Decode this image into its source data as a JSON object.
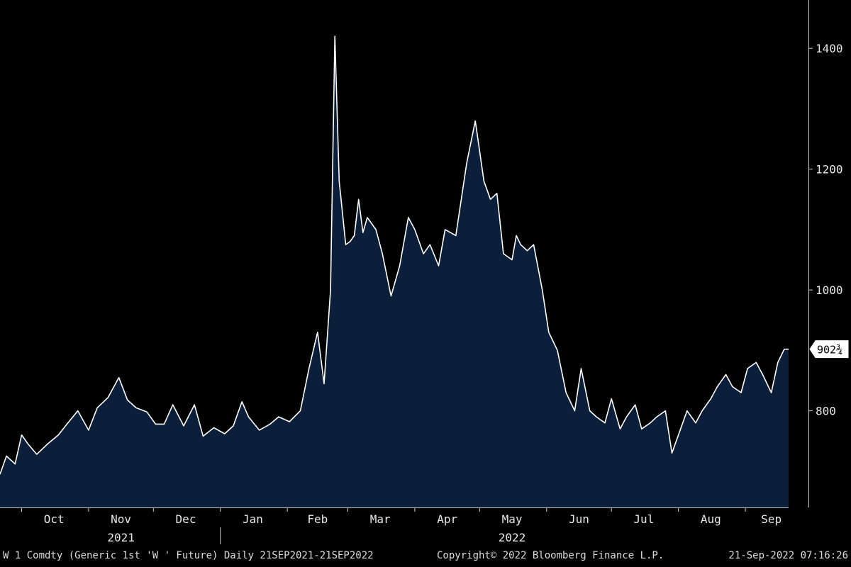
{
  "chart_data": {
    "type": "area",
    "title": "",
    "xlabel": "",
    "ylabel": "",
    "ylim": [
      640,
      1480
    ],
    "y_ticks": [
      800,
      1000,
      1200,
      1400
    ],
    "x_range": [
      "2021-09-21",
      "2022-09-21"
    ],
    "x_tick_labels": [
      "Oct",
      "Nov",
      "Dec",
      "Jan",
      "Feb",
      "Mar",
      "Apr",
      "May",
      "Jun",
      "Jul",
      "Aug",
      "Sep"
    ],
    "year_labels": [
      "2021",
      "2022"
    ],
    "last_value_label": "902¾",
    "grid": false,
    "colors": {
      "line": "#ffffff",
      "fill": "#0b1e3a",
      "background": "#000000"
    },
    "series": [
      {
        "x": [
          "2021-09-21",
          "2021-09-24",
          "2021-09-28",
          "2021-10-01",
          "2021-10-04",
          "2021-10-08",
          "2021-10-13",
          "2021-10-18",
          "2021-10-22",
          "2021-10-27",
          "2021-11-01",
          "2021-11-05",
          "2021-11-10",
          "2021-11-15",
          "2021-11-19",
          "2021-11-23",
          "2021-11-28",
          "2021-12-02",
          "2021-12-06",
          "2021-12-10",
          "2021-12-15",
          "2021-12-20",
          "2021-12-24",
          "2021-12-29",
          "2022-01-03",
          "2022-01-07",
          "2022-01-11",
          "2022-01-14",
          "2022-01-19",
          "2022-01-24",
          "2022-01-28",
          "2022-02-02",
          "2022-02-07",
          "2022-02-11",
          "2022-02-15",
          "2022-02-18",
          "2022-02-21",
          "2022-02-23",
          "2022-02-25",
          "2022-02-28",
          "2022-03-02",
          "2022-03-04",
          "2022-03-06",
          "2022-03-08",
          "2022-03-10",
          "2022-03-14",
          "2022-03-17",
          "2022-03-21",
          "2022-03-25",
          "2022-03-29",
          "2022-04-01",
          "2022-04-05",
          "2022-04-08",
          "2022-04-12",
          "2022-04-15",
          "2022-04-20",
          "2022-04-25",
          "2022-04-29",
          "2022-05-03",
          "2022-05-06",
          "2022-05-09",
          "2022-05-12",
          "2022-05-16",
          "2022-05-18",
          "2022-05-20",
          "2022-05-23",
          "2022-05-26",
          "2022-05-30",
          "2022-06-02",
          "2022-06-06",
          "2022-06-10",
          "2022-06-14",
          "2022-06-17",
          "2022-06-21",
          "2022-06-24",
          "2022-06-28",
          "2022-07-01",
          "2022-07-05",
          "2022-07-08",
          "2022-07-12",
          "2022-07-15",
          "2022-07-19",
          "2022-07-22",
          "2022-07-26",
          "2022-07-29",
          "2022-08-02",
          "2022-08-05",
          "2022-08-09",
          "2022-08-12",
          "2022-08-16",
          "2022-08-19",
          "2022-08-23",
          "2022-08-26",
          "2022-08-30",
          "2022-09-02",
          "2022-09-06",
          "2022-09-09",
          "2022-09-13",
          "2022-09-16",
          "2022-09-19",
          "2022-09-21"
        ],
        "values": [
          695,
          725,
          712,
          760,
          745,
          728,
          745,
          760,
          778,
          800,
          768,
          805,
          822,
          855,
          818,
          805,
          798,
          778,
          778,
          810,
          775,
          810,
          758,
          772,
          762,
          775,
          815,
          790,
          768,
          778,
          790,
          782,
          800,
          870,
          930,
          845,
          1000,
          1420,
          1180,
          1075,
          1080,
          1090,
          1150,
          1095,
          1120,
          1100,
          1060,
          990,
          1040,
          1120,
          1100,
          1060,
          1075,
          1040,
          1100,
          1090,
          1210,
          1280,
          1180,
          1150,
          1160,
          1060,
          1050,
          1090,
          1075,
          1065,
          1075,
          1000,
          930,
          900,
          830,
          800,
          870,
          800,
          790,
          780,
          820,
          770,
          790,
          810,
          770,
          780,
          790,
          800,
          730,
          770,
          800,
          780,
          800,
          820,
          840,
          860,
          840,
          830,
          870,
          880,
          860,
          830,
          880,
          902,
          902
        ]
      }
    ]
  },
  "footer": {
    "left": "W 1 Comdty (Generic 1st 'W ' Future)  Daily 21SEP2021-21SEP2022",
    "center": "Copyright© 2022 Bloomberg Finance L.P.",
    "right": "21-Sep-2022 07:16:26"
  }
}
